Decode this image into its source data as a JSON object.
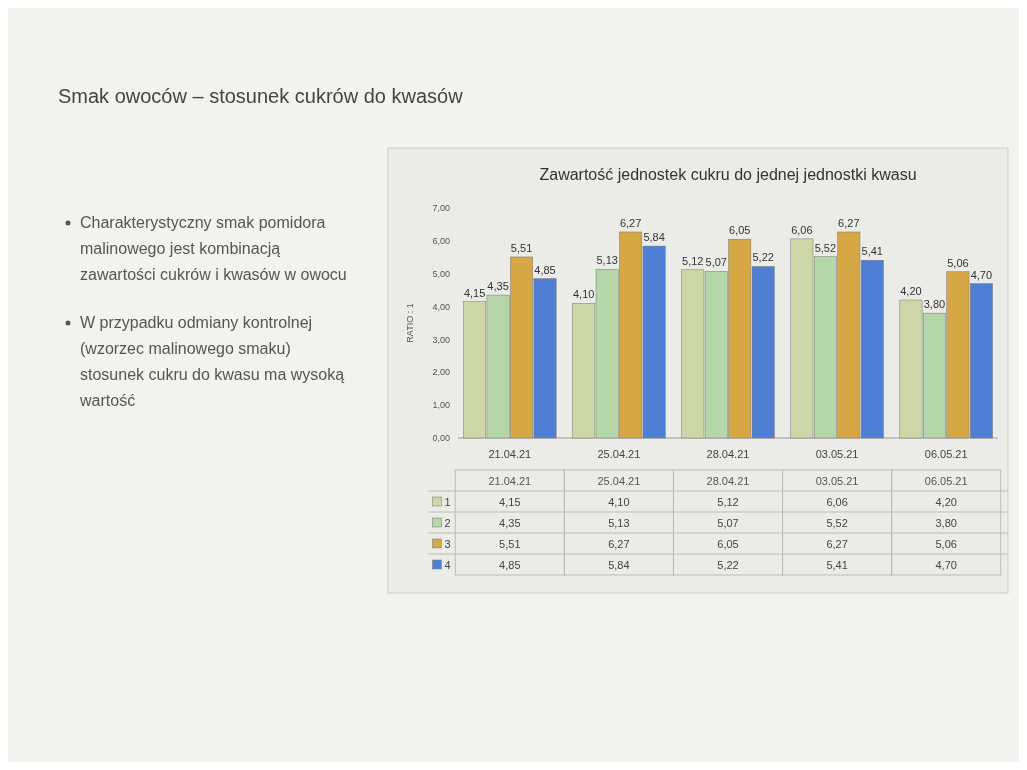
{
  "chart_data": {
    "type": "bar",
    "title": "Smak owoców – stosunek cukrów do kwasów",
    "subtitle": "Zawartość jednostek cukru do jednej jednostki kwasu",
    "ylabel": "RATIO : 1",
    "annotations": [
      "Charakterystyczny smak pomidora malinowego jest kombinacją zawartości cukrów i kwasów w owocu",
      "W przypadku odmiany kontrolnej (wzorzec malinowego smaku) stosunek cukru do kwasu ma wysoką wartość"
    ],
    "categories": [
      "21.04.21",
      "25.04.21",
      "28.04.21",
      "03.05.21",
      "06.05.21"
    ],
    "series": [
      {
        "name": "1",
        "color": "#cdd6a6",
        "values": [
          4.15,
          4.1,
          5.12,
          6.06,
          4.2
        ],
        "value_labels": [
          "4,15",
          "4,10",
          "5,12",
          "6,06",
          "4,20"
        ]
      },
      {
        "name": "2",
        "color": "#b5d6a8",
        "values": [
          4.35,
          5.13,
          5.07,
          5.52,
          3.8
        ],
        "value_labels": [
          "4,35",
          "5,13",
          "5,07",
          "5,52",
          "3,80"
        ]
      },
      {
        "name": "3",
        "color": "#d6a845",
        "values": [
          5.51,
          6.27,
          6.05,
          6.27,
          5.06
        ],
        "value_labels": [
          "5,51",
          "6,27",
          "6,05",
          "6,27",
          "5,06"
        ]
      },
      {
        "name": "4",
        "color": "#4f7fd4",
        "values": [
          4.85,
          5.84,
          5.22,
          5.41,
          4.7
        ],
        "value_labels": [
          "4,85",
          "5,84",
          "5,22",
          "5,41",
          "4,70"
        ]
      }
    ],
    "ylim": [
      0,
      7
    ],
    "yticks": [
      {
        "value": 0,
        "label": "0,00"
      },
      {
        "value": 1,
        "label": "1,00"
      },
      {
        "value": 2,
        "label": "2,00"
      },
      {
        "value": 3,
        "label": "3,00"
      },
      {
        "value": 4,
        "label": "4,00"
      },
      {
        "value": 5,
        "label": "5,00"
      },
      {
        "value": 6,
        "label": "6,00"
      },
      {
        "value": 7,
        "label": "7,00"
      }
    ],
    "grid": false,
    "legend": "bottom"
  }
}
